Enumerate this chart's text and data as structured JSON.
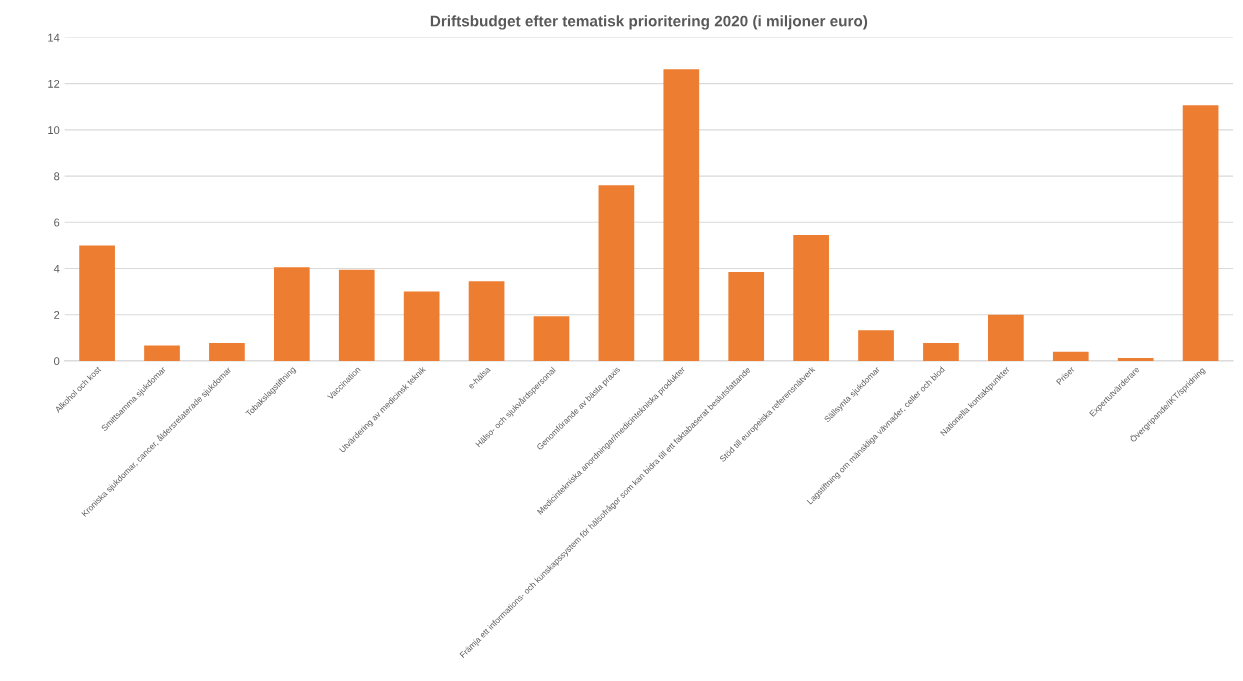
{
  "chart_data": {
    "type": "bar",
    "title": "Driftsbudget efter tematisk prioritering 2020 (i miljoner euro)",
    "categories": [
      "Alkohol och kost",
      "Smittsamma sjukdomar",
      "Kroniska sjukdomar, cancer, åldersrelaterade sjukdomar",
      "Tobakslagstiftning",
      "Vaccination",
      "Utvärdering av medicinsk teknik",
      "e-hälsa",
      "Hälso- och sjukvårdspersonal",
      "Genomförande av bästa praxis",
      "Medicintekniska anordningar/medicintekniska produkter",
      "Främja ett informations- och kunskapssystem för hälsofrågor som kan bidra till ett faktabaserat beslutsfattande",
      "Stöd till europeiska referensnätverk",
      "Sällsynta sjukdomar",
      "Lagstiftning om mänskliga vävnader, celler och blod",
      "Nationella kontaktpunkter",
      "Priser",
      "Expertutvärderare",
      "Övergripande/IKT/spridning"
    ],
    "values": [
      5.0,
      0.67,
      0.78,
      4.05,
      3.95,
      3.0,
      3.45,
      1.93,
      7.6,
      12.62,
      3.85,
      5.45,
      1.33,
      0.78,
      2.0,
      0.4,
      0.13,
      11.07
    ],
    "color": "#ed7d31",
    "ylim": [
      0,
      14
    ],
    "yticks": [
      0,
      2,
      4,
      6,
      8,
      10,
      12,
      14
    ],
    "grid": "y"
  }
}
